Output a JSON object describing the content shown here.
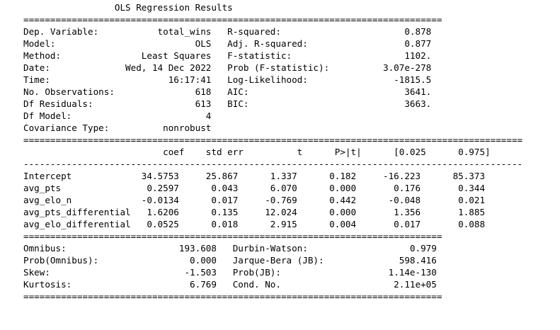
{
  "report": {
    "lines": [
      "                 OLS Regression Results                 ",
      "==============================================================================",
      "Dep. Variable:           total_wins   R-squared:                       0.878",
      "Model:                          OLS   Adj. R-squared:                  0.877",
      "Method:               Least Squares   F-statistic:                     1102.",
      "Date:              Wed, 14 Dec 2022   Prob (F-statistic):          3.07e-278",
      "Time:                      16:17:41   Log-Likelihood:                -1815.5",
      "No. Observations:               618   AIC:                             3641.",
      "Df Residuals:                   613   BIC:                             3663.",
      "Df Model:                         4",
      "Covariance Type:          nonrobust",
      "=============================================================================================",
      "                          coef    std err          t      P>|t|      [0.025      0.975]",
      "---------------------------------------------------------------------------------------------",
      "Intercept             34.5753     25.867      1.337      0.182     -16.223      85.373",
      "avg_pts                0.2597      0.043      6.070      0.000       0.176       0.344",
      "avg_elo_n             -0.0134      0.017     -0.769      0.442      -0.048       0.021",
      "avg_pts_differential   1.6206      0.135     12.024      0.000       1.356       1.885",
      "avg_elo_differential   0.0525      0.018      2.915      0.004       0.017       0.088",
      "==============================================================================",
      "Omnibus:                     193.608   Durbin-Watson:                   0.979",
      "Prob(Omnibus):                 0.000   Jarque-Bera (JB):              598.416",
      "Skew:                         -1.503   Prob(JB):                    1.14e-130",
      "Kurtosis:                      6.769   Cond. No.                     2.11e+05",
      "=============================================================================="
    ]
  }
}
